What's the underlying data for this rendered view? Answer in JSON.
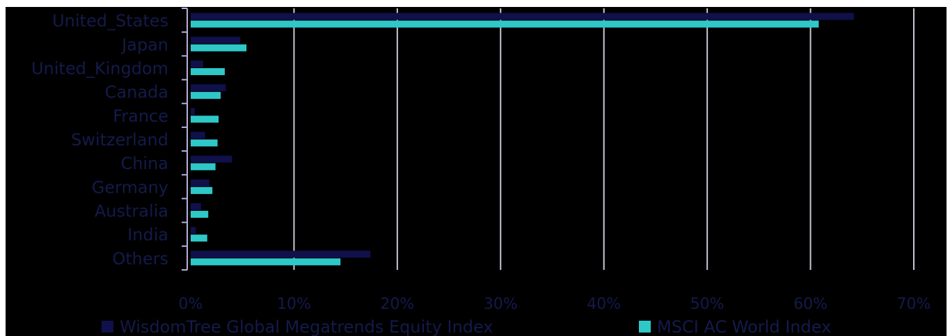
{
  "colors": {
    "background": "#000000",
    "gridline": "#c9c9d6",
    "axis": "#b7b0dc",
    "label_text": "#141a4a",
    "series_1": "#10104a",
    "series_2": "#2ec8c8"
  },
  "chart_data": {
    "type": "bar",
    "orientation": "horizontal",
    "categories": [
      "United_States",
      "Japan",
      "United_Kingdom",
      "Canada",
      "France",
      "Switzerland",
      "China",
      "Germany",
      "Australia",
      "India",
      "Others"
    ],
    "series": [
      {
        "name": "WisdomTree Global Megatrends Equity Index",
        "values": [
          64.2,
          4.8,
          1.2,
          3.4,
          0.4,
          1.4,
          4.0,
          1.8,
          1.0,
          0.5,
          17.4
        ]
      },
      {
        "name": "MSCI AC World Index",
        "values": [
          60.8,
          5.4,
          3.3,
          2.9,
          2.7,
          2.6,
          2.4,
          2.1,
          1.7,
          1.6,
          14.5
        ]
      }
    ],
    "x_ticks": [
      "0%",
      "10%",
      "20%",
      "30%",
      "40%",
      "50%",
      "60%",
      "70%"
    ],
    "xlim": [
      0,
      70
    ],
    "grid": true,
    "legend_position": "bottom"
  }
}
